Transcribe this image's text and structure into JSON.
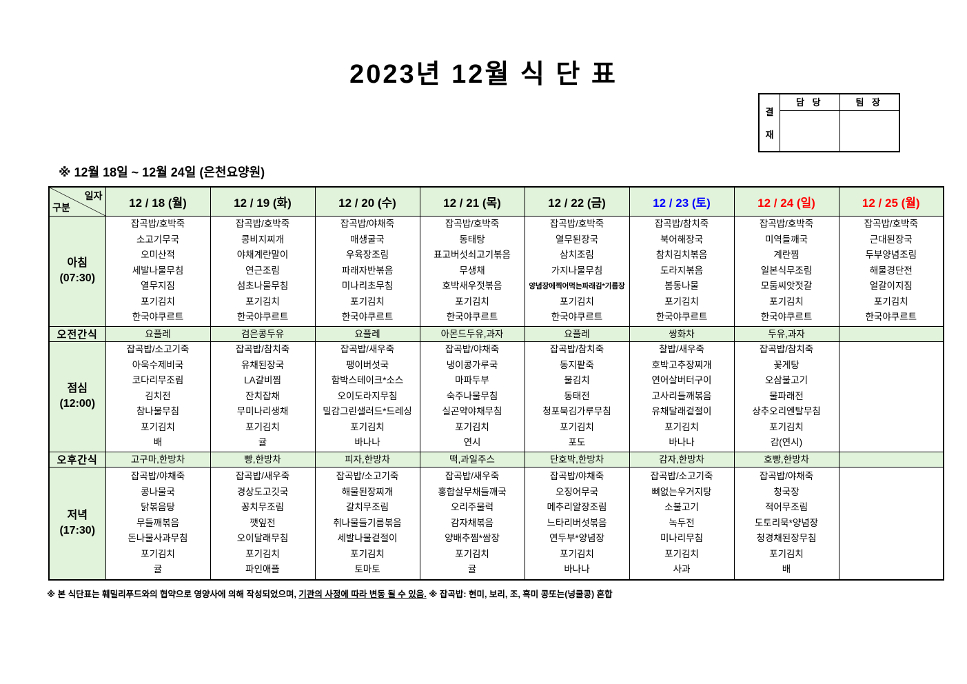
{
  "title": "2023년 12월 식 단 표",
  "approval": {
    "side_char1": "결",
    "side_char2": "재",
    "col1": "담 당",
    "col2": "팀 장"
  },
  "subtitle": "※  12월 18일 ~ 12월 24일 (은천요양원)",
  "corner": {
    "top": "일자",
    "bottom": "구분"
  },
  "columns": [
    {
      "label": "12 / 18 (월)",
      "color": "#000000"
    },
    {
      "label": "12 / 19 (화)",
      "color": "#000000"
    },
    {
      "label": "12 / 20 (수)",
      "color": "#000000"
    },
    {
      "label": "12 / 21 (목)",
      "color": "#000000"
    },
    {
      "label": "12 / 22 (금)",
      "color": "#000000"
    },
    {
      "label": "12 / 23 (토)",
      "color": "#0000ff"
    },
    {
      "label": "12 / 24 (일)",
      "color": "#ff0000"
    },
    {
      "label": "12 / 25 (월)",
      "color": "#ff0000"
    }
  ],
  "rows": [
    {
      "type": "meal",
      "label": "아침",
      "time": "(07:30)",
      "cells": [
        [
          "잡곡밥/호박죽",
          "소고기무국",
          "오미산적",
          "세발나물무침",
          "열무지짐",
          "포기김치",
          "한국야쿠르트"
        ],
        [
          "잡곡밥/호박죽",
          "콩비지찌개",
          "야채계란말이",
          "연근조림",
          "섬초나물무침",
          "포기김치",
          "한국야쿠르트"
        ],
        [
          "잡곡밥/야채죽",
          "매생굴국",
          "우육장조림",
          "파래자반볶음",
          "미나리초무침",
          "포기김치",
          "한국야쿠르트"
        ],
        [
          "잡곡밥/호박죽",
          "동태탕",
          "표고버섯쇠고기볶음",
          "무생채",
          "호박새우젓볶음",
          "포기김치",
          "한국야쿠르트"
        ],
        [
          "잡곡밥/호박죽",
          "열무된장국",
          "삼치조림",
          "가지나물무침",
          "양념장에찍어먹는파래김*기름장",
          "포기김치",
          "한국야쿠르트"
        ],
        [
          "잡곡밥/참치죽",
          "북어해장국",
          "참치김치볶음",
          "도라지볶음",
          "봄동나물",
          "포기김치",
          "한국야쿠르트"
        ],
        [
          "잡곡밥/호박죽",
          "미역들깨국",
          "계란찜",
          "일본식무조림",
          "모둠씨앗젓갈",
          "포기김치",
          "한국야쿠르트"
        ],
        [
          "잡곡밥/호박죽",
          "근대된장국",
          "두부양념조림",
          "해물경단전",
          "얼갈이지짐",
          "포기김치",
          "한국야쿠르트"
        ]
      ]
    },
    {
      "type": "snack",
      "label": "오전간식",
      "cells": [
        "요플레",
        "검은콩두유",
        "요플레",
        "아몬드두유,과자",
        "요플레",
        "쌍화차",
        "두유,과자",
        ""
      ]
    },
    {
      "type": "meal",
      "label": "점심",
      "time": "(12:00)",
      "cells": [
        [
          "잡곡밥/소고기죽",
          "아욱수제비국",
          "코다리무조림",
          "김치전",
          "참나물무침",
          "포기김치",
          "배"
        ],
        [
          "잡곡밥/참치죽",
          "유채된장국",
          "LA갈비찜",
          "잔치잡채",
          "무미나리생채",
          "포기김치",
          "귤"
        ],
        [
          "잡곡밥/새우죽",
          "팽이버섯국",
          "함박스테이크*소스",
          "오이도라지무침",
          "밀감그린샐러드*드레싱",
          "포기김치",
          "바나나"
        ],
        [
          "잡곡밥/야채죽",
          "냉이콩가루국",
          "마파두부",
          "숙주나물무침",
          "실곤약야채무침",
          "포기김치",
          "연시"
        ],
        [
          "잡곡밥/참치죽",
          "동지팥죽",
          "물김치",
          "동태전",
          "청포묵김가루무침",
          "포기김치",
          "포도"
        ],
        [
          "찰밥/새우죽",
          "호박고추장찌개",
          "연어살버터구이",
          "고사리들깨볶음",
          "유채달래겉절이",
          "포기김치",
          "바나나"
        ],
        [
          "잡곡밥/참치죽",
          "꽃게탕",
          "오삼불고기",
          "물파래전",
          "상추오리엔탈무침",
          "포기김치",
          "감(연시)"
        ],
        []
      ]
    },
    {
      "type": "snack",
      "label": "오후간식",
      "cells": [
        "고구마,한방차",
        "빵,한방차",
        "피자,한방차",
        "떡,과일주스",
        "단호박,한방차",
        "감자,한방차",
        "호빵,한방차",
        ""
      ]
    },
    {
      "type": "meal",
      "label": "저녁",
      "time": "(17:30)",
      "tall": true,
      "cells": [
        [
          "잡곡밥/야채죽",
          "콩나물국",
          "닭볶음탕",
          "무들깨볶음",
          "돈나물사과무침",
          "포기김치",
          "귤"
        ],
        [
          "잡곡밥/새우죽",
          "경상도고깃국",
          "꽁치무조림",
          "깻잎전",
          "오이달래무침",
          "포기김치",
          "파인애플"
        ],
        [
          "잡곡밥/소고기죽",
          "해물된장찌개",
          "갈치무조림",
          "취나물들기름볶음",
          "세발나물겉절이",
          "포기김치",
          "토마토"
        ],
        [
          "잡곡밥/새우죽",
          "홍합살무채들깨국",
          "오리주물럭",
          "감자채볶음",
          "양배추찜*쌈장",
          "포기김치",
          "귤"
        ],
        [
          "잡곡밥/야채죽",
          "오징어무국",
          "메추리알장조림",
          "느타리버섯볶음",
          "연두부*양념장",
          "포기김치",
          "바나나"
        ],
        [
          "잡곡밥/소고기죽",
          "뼈없는우거지탕",
          "소불고기",
          "녹두전",
          "미나리무침",
          "포기김치",
          "사과"
        ],
        [
          "잡곡밥/야채죽",
          "청국장",
          "적어무조림",
          "도토리묵*양념장",
          "청경채된장무침",
          "포기김치",
          "배"
        ],
        []
      ]
    }
  ],
  "footer": {
    "part1": "※  본 식단표는 훼밀리푸드와의 협약으로 영양사에 의해 작성되었으며, ",
    "underline": "기관의 사정에 따라 변동 될 수 있음.",
    "part2": " ※ 잡곡밥: 현미, 보리, 조, 흑미 콩또는(넝쿨콩) 혼합"
  }
}
